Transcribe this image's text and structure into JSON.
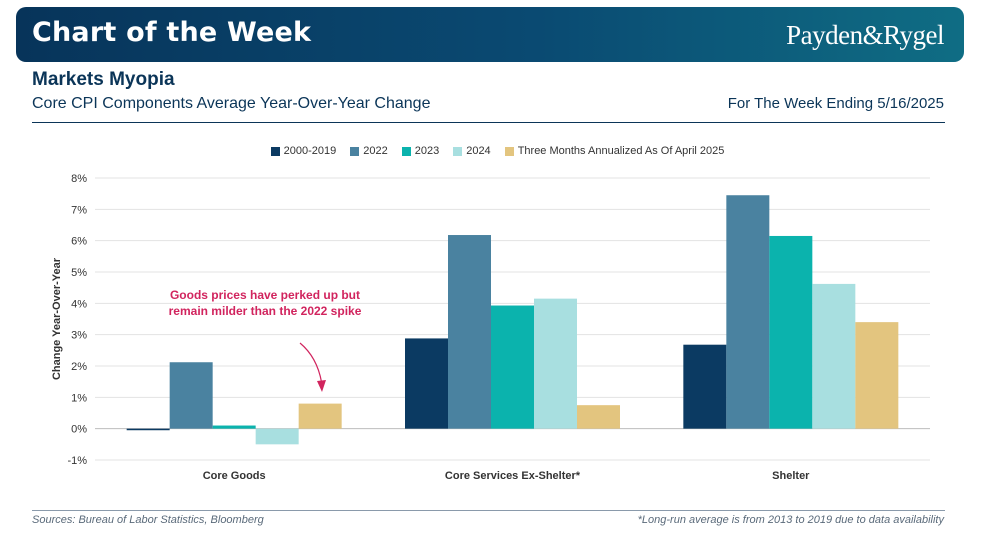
{
  "header": {
    "title": "Chart of the Week",
    "brand": "Payden&Rygel"
  },
  "headline": "Markets Myopia",
  "subtitle": "Core CPI Components Average Year-Over-Year Change",
  "week": "For The Week Ending 5/16/2025",
  "footer": {
    "source": "Sources: Bureau of Labor Statistics, Bloomberg",
    "note": "*Long-run average is from 2013 to 2019 due to data availability"
  },
  "annotation": {
    "line1": "Goods prices have perked up but",
    "line2": "remain milder than the 2022 spike"
  },
  "colors": {
    "accent": "#d1245e",
    "banner": "#0a4a72",
    "text": "#0b3558"
  },
  "chart_data": {
    "type": "bar",
    "categories": [
      "Core Goods",
      "Core Services Ex-Shelter*",
      "Shelter"
    ],
    "series": [
      {
        "name": "2000-2019",
        "color": "#0b3a62",
        "values": [
          -0.05,
          2.88,
          2.68
        ]
      },
      {
        "name": "2022",
        "color": "#4a82a0",
        "values": [
          2.12,
          6.18,
          7.45
        ]
      },
      {
        "name": "2023",
        "color": "#0bb3ad",
        "values": [
          0.1,
          3.93,
          6.15
        ]
      },
      {
        "name": "2024",
        "color": "#a8dfe0",
        "values": [
          -0.5,
          4.15,
          4.62
        ]
      },
      {
        "name": "Three Months Annualized As Of April 2025",
        "color": "#e3c57f",
        "values": [
          0.8,
          0.75,
          3.4
        ]
      }
    ],
    "ylabel": "Change Year-Over-Year",
    "xlabel": "",
    "ylim": [
      -1,
      8
    ],
    "yticks": [
      "-1%",
      "0%",
      "1%",
      "2%",
      "3%",
      "4%",
      "5%",
      "6%",
      "7%",
      "8%"
    ],
    "grid": true,
    "legend": "top-center"
  }
}
